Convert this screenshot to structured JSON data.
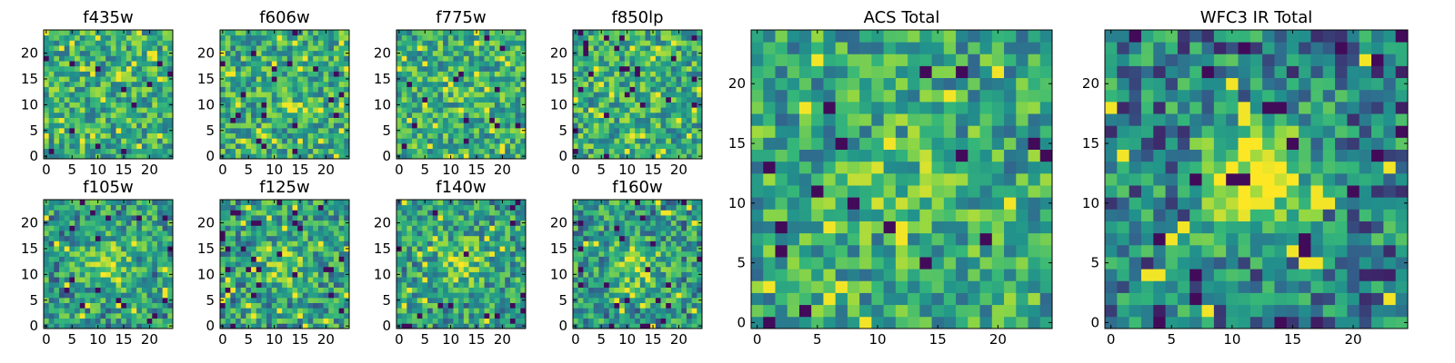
{
  "figure": {
    "colormap": "viridis",
    "colormap_stops": [
      "#440154",
      "#31688e",
      "#21918c",
      "#35b779",
      "#90d743",
      "#fde725"
    ]
  },
  "chart_data": [
    {
      "type": "heatmap",
      "title": "f435w",
      "grid_size": 25,
      "xlim": [
        -0.5,
        24.5
      ],
      "ylim": [
        -0.5,
        24.5
      ],
      "xticks": [
        0,
        5,
        10,
        15,
        20
      ],
      "yticks": [
        0,
        5,
        10,
        15,
        20
      ],
      "pattern": "noise",
      "seed": 11,
      "blob_strength": 0.0
    },
    {
      "type": "heatmap",
      "title": "f606w",
      "grid_size": 25,
      "xlim": [
        -0.5,
        24.5
      ],
      "ylim": [
        -0.5,
        24.5
      ],
      "xticks": [
        0,
        5,
        10,
        15,
        20
      ],
      "yticks": [
        0,
        5,
        10,
        15,
        20
      ],
      "pattern": "noise",
      "seed": 23,
      "blob_strength": 0.05
    },
    {
      "type": "heatmap",
      "title": "f775w",
      "grid_size": 25,
      "xlim": [
        -0.5,
        24.5
      ],
      "ylim": [
        -0.5,
        24.5
      ],
      "xticks": [
        0,
        5,
        10,
        15,
        20
      ],
      "yticks": [
        0,
        5,
        10,
        15,
        20
      ],
      "pattern": "noise",
      "seed": 37,
      "blob_strength": 0.05
    },
    {
      "type": "heatmap",
      "title": "f850lp",
      "grid_size": 25,
      "xlim": [
        -0.5,
        24.5
      ],
      "ylim": [
        -0.5,
        24.5
      ],
      "xticks": [
        0,
        5,
        10,
        15,
        20
      ],
      "yticks": [
        0,
        5,
        10,
        15,
        20
      ],
      "pattern": "noise",
      "seed": 41,
      "blob_strength": 0.05
    },
    {
      "type": "heatmap",
      "title": "f105w",
      "grid_size": 25,
      "xlim": [
        -0.5,
        24.5
      ],
      "ylim": [
        -0.5,
        24.5
      ],
      "xticks": [
        0,
        5,
        10,
        15,
        20
      ],
      "yticks": [
        0,
        5,
        10,
        15,
        20
      ],
      "pattern": "blob",
      "seed": 53,
      "blob_strength": 0.35
    },
    {
      "type": "heatmap",
      "title": "f125w",
      "grid_size": 25,
      "xlim": [
        -0.5,
        24.5
      ],
      "ylim": [
        -0.5,
        24.5
      ],
      "xticks": [
        0,
        5,
        10,
        15,
        20
      ],
      "yticks": [
        0,
        5,
        10,
        15,
        20
      ],
      "pattern": "blob",
      "seed": 67,
      "blob_strength": 0.3
    },
    {
      "type": "heatmap",
      "title": "f140w",
      "grid_size": 25,
      "xlim": [
        -0.5,
        24.5
      ],
      "ylim": [
        -0.5,
        24.5
      ],
      "xticks": [
        0,
        5,
        10,
        15,
        20
      ],
      "yticks": [
        0,
        5,
        10,
        15,
        20
      ],
      "pattern": "blob",
      "seed": 79,
      "blob_strength": 0.3
    },
    {
      "type": "heatmap",
      "title": "f160w",
      "grid_size": 25,
      "xlim": [
        -0.5,
        24.5
      ],
      "ylim": [
        -0.5,
        24.5
      ],
      "xticks": [
        0,
        5,
        10,
        15,
        20
      ],
      "yticks": [
        0,
        5,
        10,
        15,
        20
      ],
      "pattern": "blob",
      "seed": 83,
      "blob_strength": 0.35
    },
    {
      "type": "heatmap",
      "title": "ACS Total",
      "grid_size": 25,
      "xlim": [
        -0.5,
        24.5
      ],
      "ylim": [
        -0.5,
        24.5
      ],
      "xticks": [
        0,
        5,
        10,
        15,
        20
      ],
      "yticks": [
        0,
        5,
        10,
        15,
        20
      ],
      "pattern": "noise",
      "seed": 97,
      "blob_strength": 0.15
    },
    {
      "type": "heatmap",
      "title": "WFC3 IR Total",
      "grid_size": 25,
      "xlim": [
        -0.5,
        24.5
      ],
      "ylim": [
        -0.5,
        24.5
      ],
      "xticks": [
        0,
        5,
        10,
        15,
        20
      ],
      "yticks": [
        0,
        5,
        10,
        15,
        20
      ],
      "pattern": "blob",
      "seed": 101,
      "blob_strength": 0.7
    }
  ]
}
